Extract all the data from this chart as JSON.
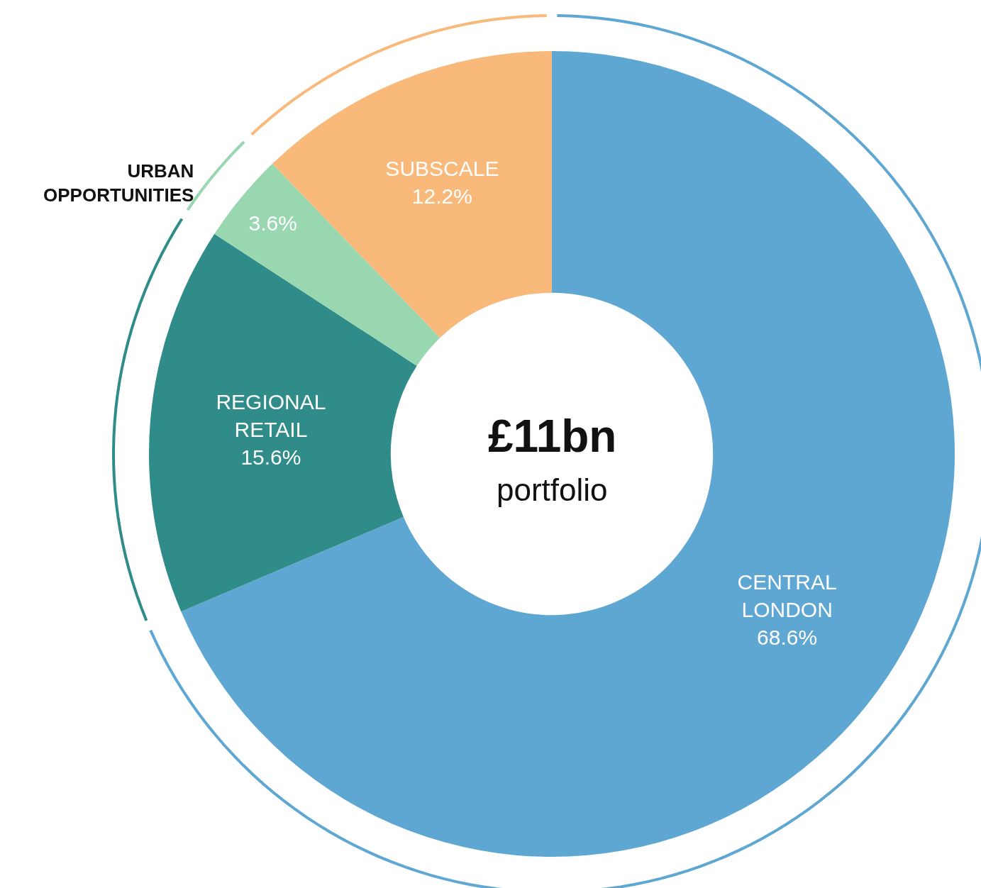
{
  "chart_data": {
    "type": "donut",
    "title": "£11bn",
    "subtitle": "portfolio",
    "categories": [
      "CENTRAL LONDON",
      "REGIONAL RETAIL",
      "URBAN OPPORTUNITIES",
      "SUBSCALE"
    ],
    "values": [
      68.6,
      15.6,
      3.6,
      12.2
    ],
    "value_labels": [
      "68.6%",
      "15.6%",
      "3.6%",
      "12.2%"
    ],
    "colors": [
      "#5fa7d3",
      "#2f8c89",
      "#98d7b0",
      "#f8b97a"
    ],
    "legend": false
  }
}
